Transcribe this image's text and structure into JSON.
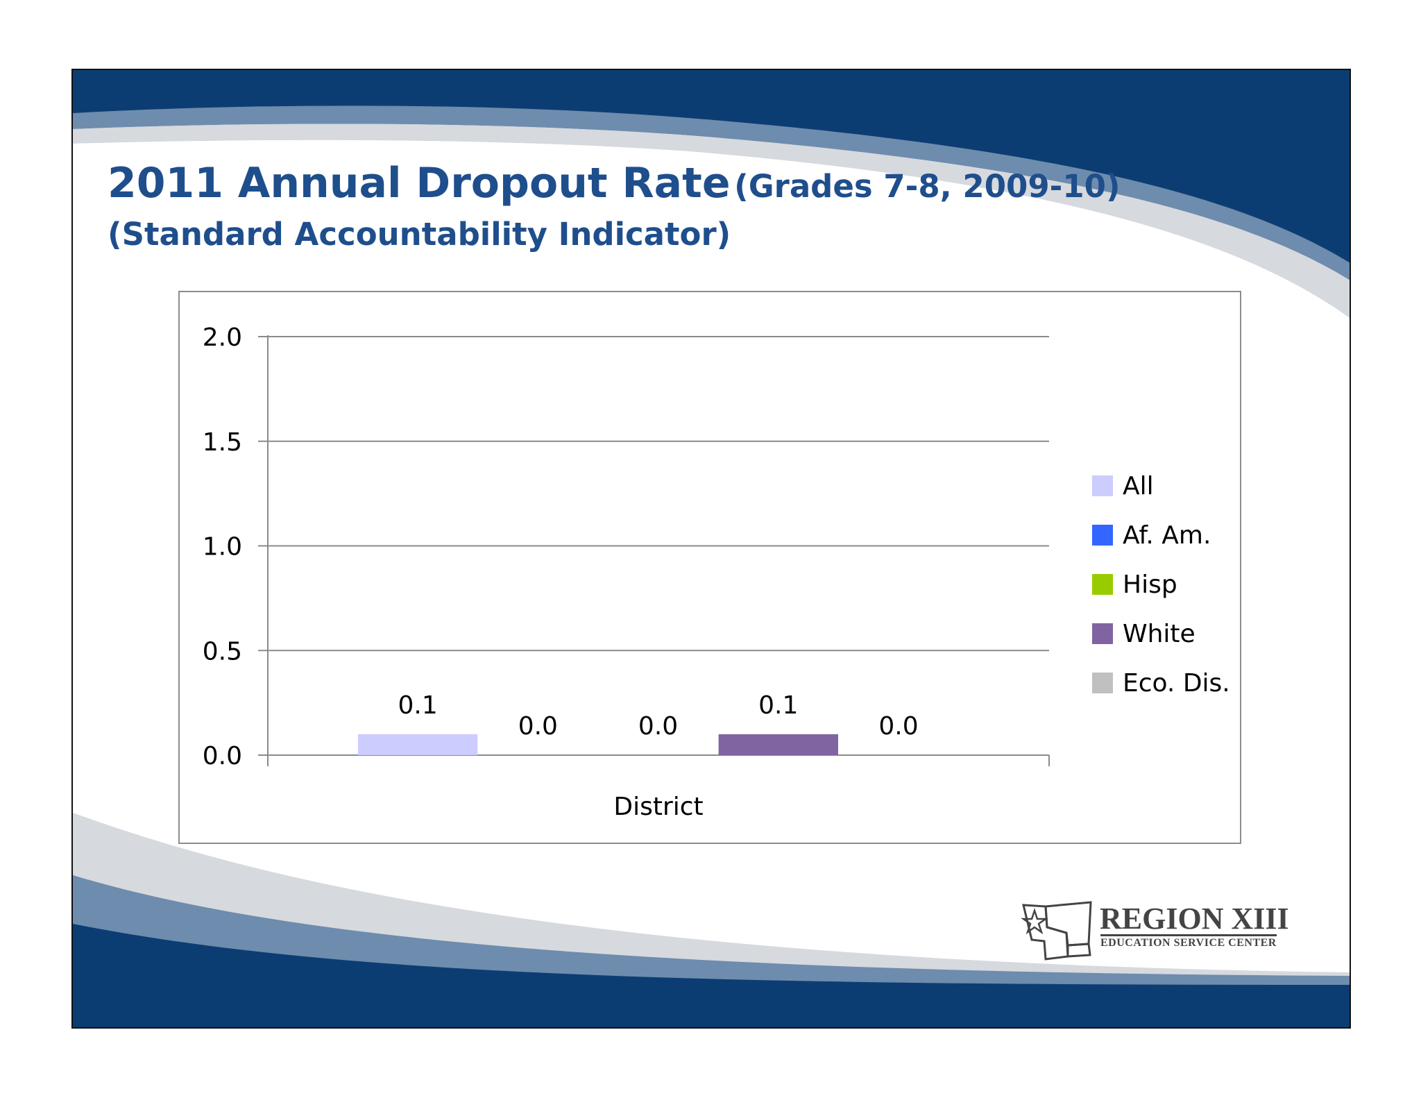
{
  "slide": {
    "title_main": "2011 Annual Dropout Rate",
    "title_paren": "(Grades 7-8, 2009-10)",
    "subtitle": "(Standard Accountability Indicator)"
  },
  "colors": {
    "brand_navy": "#0c3d72",
    "brand_slate": "#6e8cad",
    "title": "#1f4e8c"
  },
  "chart_data": {
    "type": "bar",
    "categories": [
      "District"
    ],
    "series": [
      {
        "name": "All",
        "values": [
          0.1
        ],
        "label": "0.1",
        "color": "#ccccff"
      },
      {
        "name": "Af. Am.",
        "values": [
          0.0
        ],
        "label": "0.0",
        "color": "#3366ff"
      },
      {
        "name": "Hisp",
        "values": [
          0.0
        ],
        "label": "0.0",
        "color": "#99cc00"
      },
      {
        "name": "White",
        "values": [
          0.1
        ],
        "label": "0.1",
        "color": "#8064a2"
      },
      {
        "name": "Eco. Dis.",
        "values": [
          0.0
        ],
        "label": "0.0",
        "color": "#c0c0c0"
      }
    ],
    "y_ticks": [
      "0.0",
      "0.5",
      "1.0",
      "1.5",
      "2.0"
    ],
    "ylim": [
      0,
      2.0
    ],
    "grid": true,
    "legend_position": "right"
  },
  "logo": {
    "name": "REGION XIII",
    "tagline": "EDUCATION SERVICE CENTER"
  }
}
